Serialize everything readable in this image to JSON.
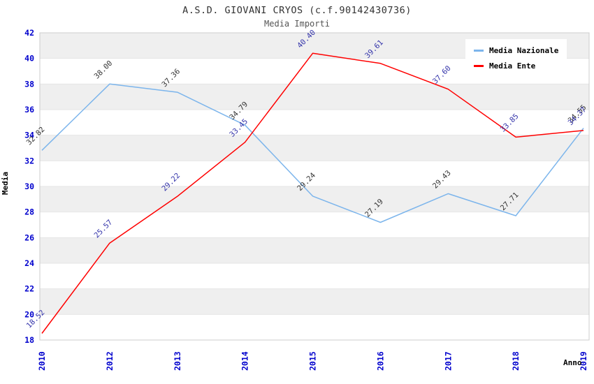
{
  "title": "A.S.D. GIOVANI CRYOS (c.f.90142430736)",
  "subtitle": "Media Importi",
  "colors": {
    "tick_label": "#0000cd",
    "band_gray": "#efefef",
    "gridline": "#e6e6e6",
    "plot_border": "#cccccc",
    "series_nazionale": "#7cb5ec",
    "series_ente": "#ff0000",
    "label_nazionale": "#333333",
    "label_ente": "#3333aa"
  },
  "chart_data": {
    "type": "line",
    "categories": [
      "2010",
      "2012",
      "2013",
      "2014",
      "2015",
      "2016",
      "2017",
      "2018",
      "2019"
    ],
    "series": [
      {
        "name": "Media Nazionale",
        "color": "#7cb5ec",
        "label_color": "#333333",
        "values": [
          32.82,
          38.0,
          37.36,
          34.79,
          29.24,
          27.19,
          29.43,
          27.71,
          34.55
        ]
      },
      {
        "name": "Media Ente",
        "color": "#ff0000",
        "label_color": "#3333aa",
        "values": [
          18.52,
          25.57,
          29.22,
          33.45,
          40.4,
          39.61,
          37.6,
          33.85,
          34.37
        ]
      }
    ],
    "xlabel": "Anno",
    "ylabel": "Media",
    "ylim": [
      18,
      42
    ],
    "y_ticks": [
      18,
      20,
      22,
      24,
      26,
      28,
      30,
      32,
      34,
      36,
      38,
      40,
      42
    ],
    "grid": true,
    "bands": "alternating",
    "legend_position": "top-right"
  }
}
